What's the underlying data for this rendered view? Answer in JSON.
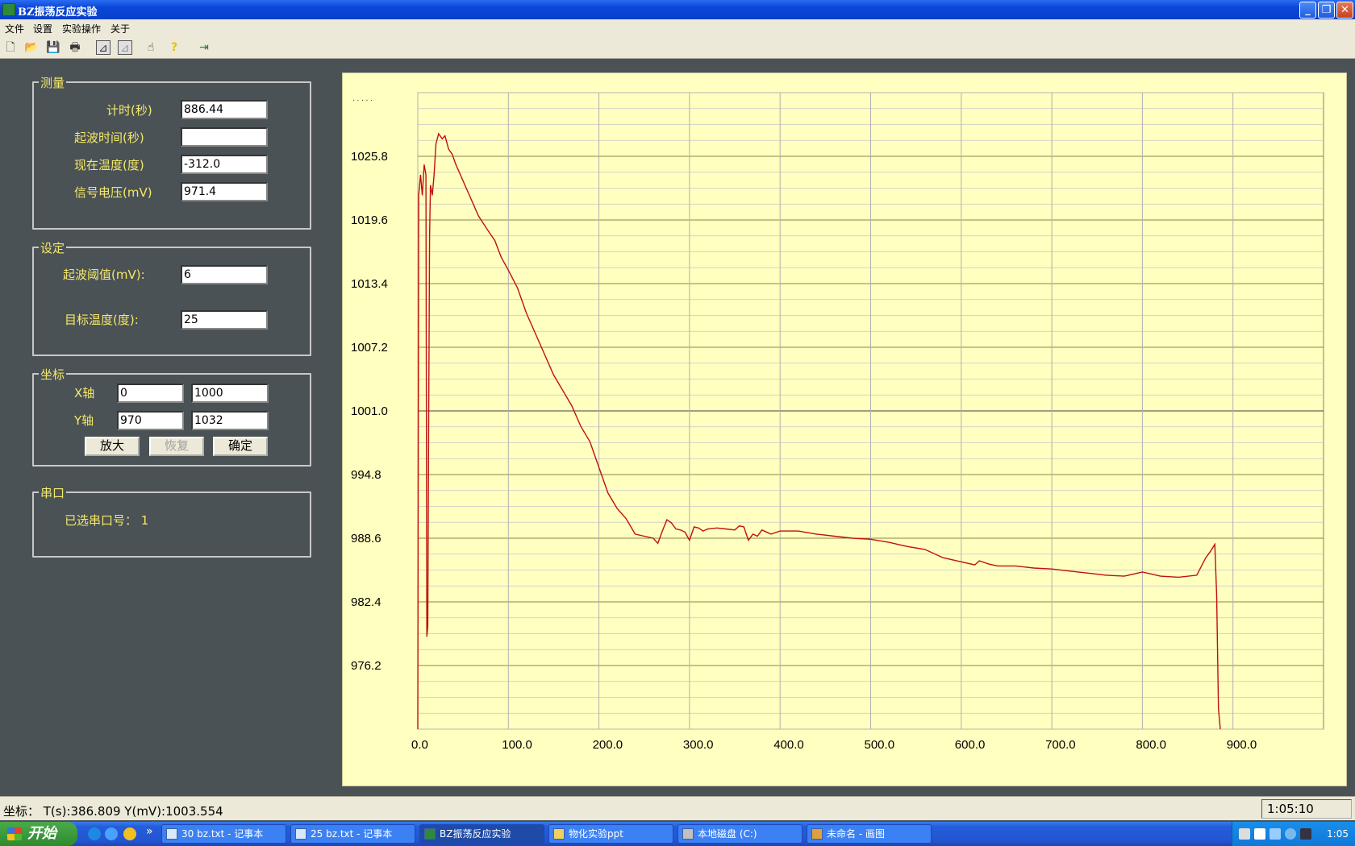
{
  "window": {
    "title": "BZ振荡反应实验",
    "min": "_",
    "max": "❐",
    "close": "✕"
  },
  "menu": [
    "文件",
    "设置",
    "实验操作",
    "关于"
  ],
  "measure": {
    "title": "测量",
    "fields": [
      {
        "label": "计时(秒)",
        "value": "886.44"
      },
      {
        "label": "起波时间(秒)",
        "value": ""
      },
      {
        "label": "现在温度(度)",
        "value": "-312.0"
      },
      {
        "label": "信号电压(mV)",
        "value": "971.4"
      }
    ]
  },
  "settings": {
    "title": "设定",
    "threshold_label": "起波阈值(mV):",
    "threshold_value": "6",
    "target_label": "目标温度(度):",
    "target_value": "25"
  },
  "axes": {
    "title": "坐标",
    "x_label": "X轴",
    "x_min": "0",
    "x_max": "1000",
    "y_label": "Y轴",
    "y_min": "970",
    "y_max": "1032",
    "zoom_label": "放大",
    "restore_label": "恢复",
    "ok_label": "确定"
  },
  "serial": {
    "title": "串口",
    "text": "已选串口号：  1"
  },
  "statusbar": {
    "coord": "坐标：  T(s):386.809   Y(mV):1003.554",
    "clock": "1:05:10"
  },
  "taskbar": {
    "start": "开始",
    "quicklaunch_more": "»",
    "tasks": [
      "30 bz.txt - 记事本",
      "25 bz.txt - 记事本",
      "BZ振荡反应实验",
      "物化实验ppt",
      "本地磁盘 (C:)",
      "未命名 - 画图"
    ],
    "time": "1:05"
  },
  "colors": {
    "plot_bg": "#ffffc0",
    "trace": "#c01010",
    "panel_bg": "#4a5255",
    "label": "#f4e86a"
  },
  "chart_data": {
    "type": "line",
    "xlim": [
      0,
      1000
    ],
    "ylim": [
      970,
      1032
    ],
    "y_top_label_partial": ". . .  . .",
    "xticks": [
      "0.0",
      "100.0",
      "200.0",
      "300.0",
      "400.0",
      "500.0",
      "600.0",
      "700.0",
      "800.0",
      "900.0"
    ],
    "yticks": [
      "1025.8",
      "1019.6",
      "1013.4",
      "1007.2",
      "1001.0",
      "994.8",
      "988.6",
      "982.4",
      "976.2"
    ],
    "grid": true,
    "series": [
      {
        "x": [
          0,
          1,
          3,
          5,
          7,
          9,
          10,
          11,
          12,
          13,
          14,
          16,
          18,
          20,
          23,
          27,
          30,
          34,
          38,
          42,
          47,
          52,
          57,
          62,
          67,
          72,
          78,
          85,
          92,
          100,
          110,
          120,
          130,
          140,
          150,
          160,
          170,
          180,
          190,
          200,
          210,
          220,
          230,
          240,
          250,
          260,
          265,
          270,
          275,
          280,
          285,
          290,
          295,
          300,
          305,
          310,
          315,
          320,
          330,
          340,
          350,
          355,
          360,
          365,
          370,
          375,
          380,
          390,
          400,
          420,
          440,
          460,
          480,
          500,
          520,
          540,
          560,
          580,
          600,
          615,
          620,
          630,
          640,
          660,
          680,
          700,
          720,
          740,
          760,
          780,
          800,
          820,
          840,
          860,
          870,
          875,
          880,
          882,
          884,
          886
        ],
        "y": [
          970,
          1022,
          1024,
          1022,
          1025,
          1024,
          979,
          980,
          1000,
          1018,
          1023,
          1022,
          1024,
          1027,
          1028,
          1027.5,
          1027.8,
          1026.5,
          1026,
          1025,
          1024,
          1023,
          1022,
          1021,
          1020,
          1019.3,
          1018.5,
          1017.6,
          1016,
          1014.7,
          1013,
          1010.5,
          1008.5,
          1006.5,
          1004.5,
          1003,
          1001.5,
          999.5,
          998,
          995.5,
          993,
          991.5,
          990.5,
          989,
          988.8,
          988.6,
          988.1,
          989.3,
          990.4,
          990.1,
          989.5,
          989.4,
          989.2,
          988.4,
          989.7,
          989.6,
          989.3,
          989.5,
          989.6,
          989.5,
          989.4,
          989.8,
          989.7,
          988.4,
          989.0,
          988.8,
          989.4,
          989.0,
          989.3,
          989.3,
          989.0,
          988.8,
          988.6,
          988.5,
          988.2,
          987.8,
          987.5,
          986.7,
          986.3,
          986,
          986.4,
          986.1,
          985.9,
          985.9,
          985.7,
          985.6,
          985.4,
          985.2,
          985.0,
          984.9,
          985.3,
          984.9,
          984.8,
          985.0,
          986.7,
          987.3,
          988,
          983.0,
          972.0,
          970
        ]
      }
    ]
  }
}
